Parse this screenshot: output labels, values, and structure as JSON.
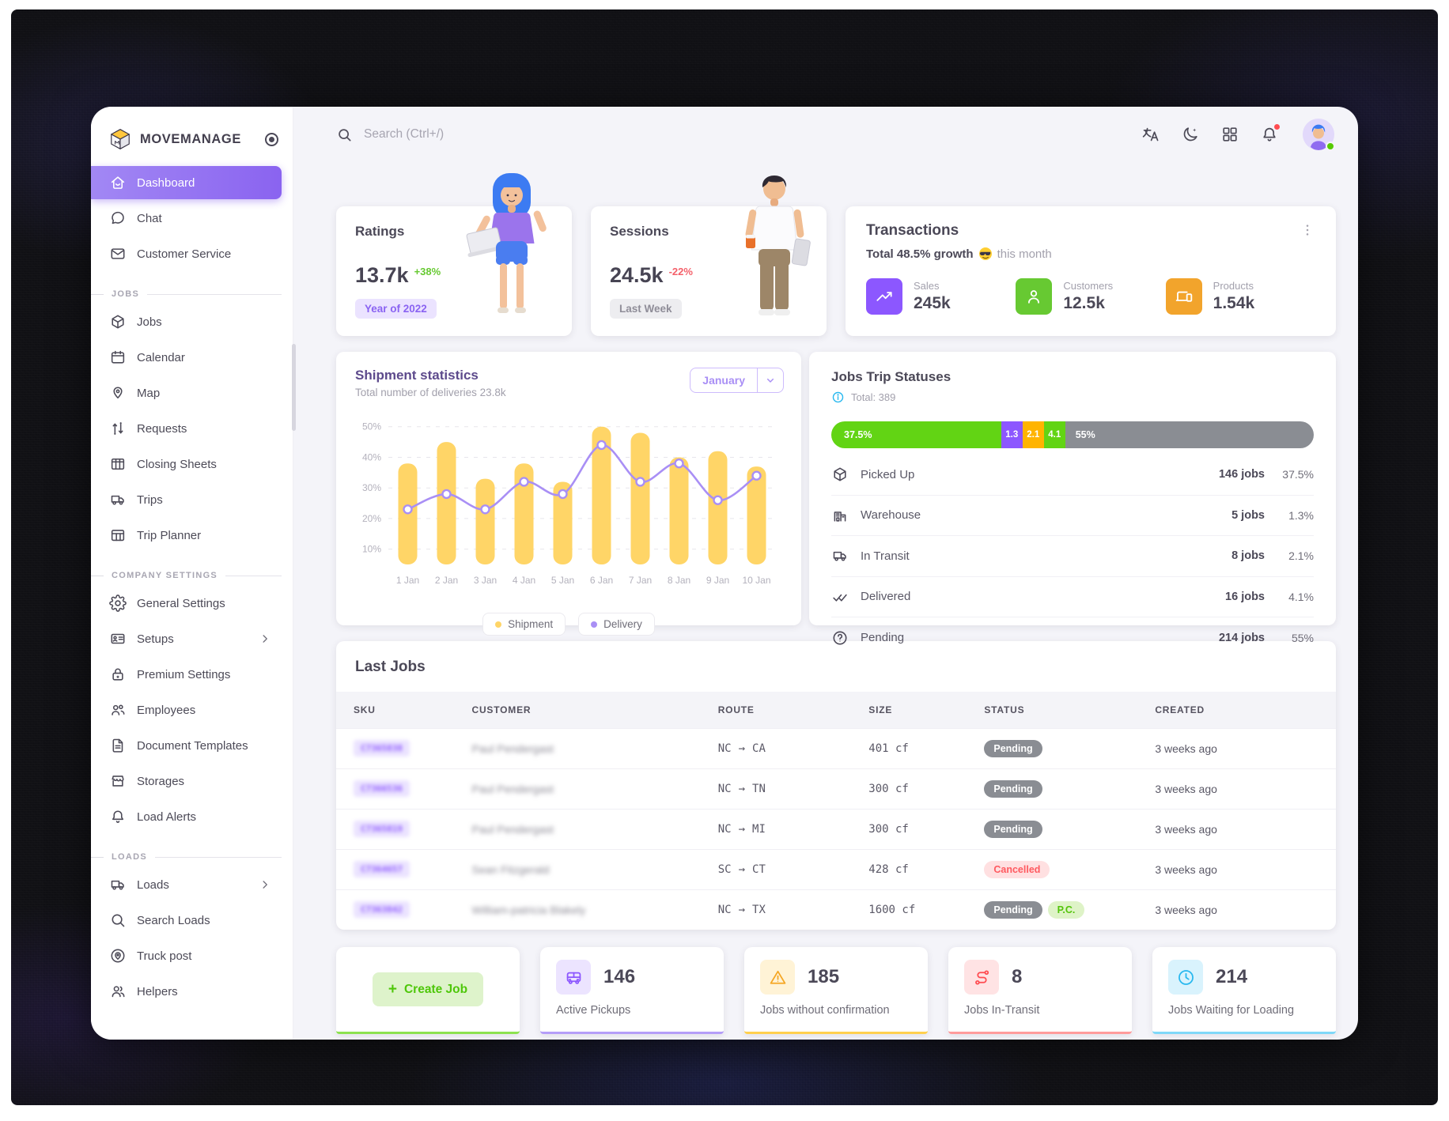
{
  "app": {
    "name": "MOVEMANAGE"
  },
  "topbar": {
    "search_placeholder": "Search (Ctrl+/)",
    "icons": [
      "language-icon",
      "dark-mode-icon",
      "apps-grid-icon",
      "notifications-bell-icon",
      "avatar"
    ]
  },
  "sidebar": {
    "sections": [
      {
        "header": null,
        "items": [
          {
            "label": "Dashboard",
            "icon": "home",
            "active": true
          },
          {
            "label": "Chat",
            "icon": "chat"
          },
          {
            "label": "Customer Service",
            "icon": "mail"
          }
        ]
      },
      {
        "header": "JOBS",
        "items": [
          {
            "label": "Jobs",
            "icon": "box"
          },
          {
            "label": "Calendar",
            "icon": "calendar"
          },
          {
            "label": "Map",
            "icon": "map-pin"
          },
          {
            "label": "Requests",
            "icon": "swap"
          },
          {
            "label": "Closing Sheets",
            "icon": "columns"
          },
          {
            "label": "Trips",
            "icon": "truck"
          },
          {
            "label": "Trip Planner",
            "icon": "table"
          }
        ]
      },
      {
        "header": "COMPANY SETTINGS",
        "items": [
          {
            "label": "General Settings",
            "icon": "gear"
          },
          {
            "label": "Setups",
            "icon": "id-card",
            "chevron": true
          },
          {
            "label": "Premium Settings",
            "icon": "lock-star"
          },
          {
            "label": "Employees",
            "icon": "people"
          },
          {
            "label": "Document Templates",
            "icon": "doc"
          },
          {
            "label": "Storages",
            "icon": "store"
          },
          {
            "label": "Load Alerts",
            "icon": "bell"
          }
        ]
      },
      {
        "header": "LOADS",
        "items": [
          {
            "label": "Loads",
            "icon": "truck",
            "chevron": true
          },
          {
            "label": "Search Loads",
            "icon": "search"
          },
          {
            "label": "Truck post",
            "icon": "pin-circle"
          },
          {
            "label": "Helpers",
            "icon": "users"
          }
        ]
      }
    ]
  },
  "ratings": {
    "title": "Ratings",
    "value": "13.7k",
    "delta": "+38%",
    "badge": "Year of 2022"
  },
  "sessions": {
    "title": "Sessions",
    "value": "24.5k",
    "delta": "-22%",
    "badge": "Last Week"
  },
  "transactions": {
    "title": "Transactions",
    "growth_bold": "Total 48.5% growth",
    "emoji": "😎",
    "growth_rest": "this month",
    "stats": [
      {
        "label": "Sales",
        "value": "245k",
        "icon": "trending-up",
        "color": "#8c57ff"
      },
      {
        "label": "Customers",
        "value": "12.5k",
        "icon": "person",
        "color": "#67c932"
      },
      {
        "label": "Products",
        "value": "1.54k",
        "icon": "devices",
        "color": "#f2a42c"
      }
    ]
  },
  "chart_data": {
    "type": "bar",
    "title": "Shipment statistics",
    "subtitle": "Total number of deliveries 23.8k",
    "period_selector": "January",
    "categories": [
      "1 Jan",
      "2 Jan",
      "3 Jan",
      "4 Jan",
      "5 Jan",
      "6 Jan",
      "7 Jan",
      "8 Jan",
      "9 Jan",
      "10 Jan"
    ],
    "series": [
      {
        "name": "Shipment",
        "render": "bar",
        "color": "#ffd567",
        "values": [
          38,
          45,
          33,
          38,
          32,
          50,
          48,
          40,
          42,
          37
        ]
      },
      {
        "name": "Delivery",
        "render": "line",
        "color": "#a98ff5",
        "values": [
          23,
          28,
          23,
          32,
          28,
          44,
          32,
          38,
          26,
          34
        ]
      }
    ],
    "ylim": [
      5,
      52
    ],
    "yticks": [
      10,
      20,
      30,
      40,
      50
    ],
    "ytick_suffix": "%",
    "grid": "dashed-horizontal",
    "legend_position": "bottom"
  },
  "trip_statuses": {
    "title": "Jobs Trip Statuses",
    "total": "Total: 389",
    "segments": [
      {
        "label": "37.5%",
        "value": 37.5,
        "color": "#62d414"
      },
      {
        "label": "1.3",
        "value": 1.3,
        "color": "#8c57ff"
      },
      {
        "label": "2.1",
        "value": 2.1,
        "color": "#ffb400"
      },
      {
        "label": "4.1",
        "value": 4.1,
        "color": "#62d414"
      },
      {
        "label": "55%",
        "value": 55,
        "color": "#8a8d93"
      }
    ],
    "rows": [
      {
        "icon": "box",
        "label": "Picked Up",
        "jobs": "146 jobs",
        "pct": "37.5%"
      },
      {
        "icon": "warehouse",
        "label": "Warehouse",
        "jobs": "5 jobs",
        "pct": "1.3%"
      },
      {
        "icon": "truck",
        "label": "In Transit",
        "jobs": "8 jobs",
        "pct": "2.1%"
      },
      {
        "icon": "double-check",
        "label": "Delivered",
        "jobs": "16 jobs",
        "pct": "4.1%"
      },
      {
        "icon": "help",
        "label": "Pending",
        "jobs": "214 jobs",
        "pct": "55%"
      }
    ]
  },
  "last_jobs": {
    "title": "Last Jobs",
    "columns": [
      "SKU",
      "CUSTOMER",
      "ROUTE",
      "SIZE",
      "STATUS",
      "CREATED"
    ],
    "rows": [
      {
        "sku": "C7365838",
        "customer": "Paul Pendergast",
        "from": "NC",
        "to": "CA",
        "size": "401 cf",
        "status": "Pending",
        "status_type": "pending",
        "extra": null,
        "created": "3 weeks ago"
      },
      {
        "sku": "C7366536",
        "customer": "Paul Pendergast",
        "from": "NC",
        "to": "TN",
        "size": "300 cf",
        "status": "Pending",
        "status_type": "pending",
        "extra": null,
        "created": "3 weeks ago"
      },
      {
        "sku": "C7365819",
        "customer": "Paul Pendergast",
        "from": "NC",
        "to": "MI",
        "size": "300 cf",
        "status": "Pending",
        "status_type": "pending",
        "extra": null,
        "created": "3 weeks ago"
      },
      {
        "sku": "C7364657",
        "customer": "Sean Fitzgerald",
        "from": "SC",
        "to": "CT",
        "size": "428 cf",
        "status": "Cancelled",
        "status_type": "cancelled",
        "extra": null,
        "created": "3 weeks ago"
      },
      {
        "sku": "C7363842",
        "customer": "William-patricia Blakely",
        "from": "NC",
        "to": "TX",
        "size": "1600 cf",
        "status": "Pending",
        "status_type": "pending",
        "extra": "P.C.",
        "created": "3 weeks ago"
      }
    ]
  },
  "footer_cards": {
    "create_label": "Create Job",
    "stats": [
      {
        "value": "146",
        "label": "Active Pickups",
        "icon": "van",
        "icon_bg": "#ece4ff",
        "icon_color": "#8c57ff",
        "border": "#b49df8"
      },
      {
        "value": "185",
        "label": "Jobs without confirmation",
        "icon": "warning",
        "icon_bg": "#fff3d6",
        "icon_color": "#f5a623",
        "border": "#ffd04e"
      },
      {
        "value": "8",
        "label": "Jobs In-Transit",
        "icon": "route",
        "icon_bg": "#ffe3e4",
        "icon_color": "#ff4c51",
        "border": "#ff9b9b"
      },
      {
        "value": "214",
        "label": "Jobs Waiting for Loading",
        "icon": "clock",
        "icon_bg": "#d9f3fd",
        "icon_color": "#28b8ef",
        "border": "#7fd8f8"
      }
    ]
  }
}
